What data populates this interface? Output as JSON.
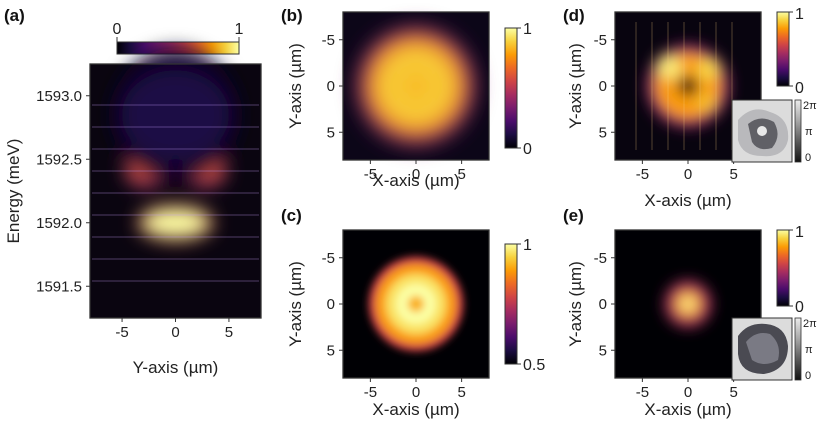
{
  "colors": {
    "inferno": [
      "#000004",
      "#1b0c41",
      "#4a0c6b",
      "#781c6d",
      "#a52c60",
      "#cf4446",
      "#ed6925",
      "#fb9b06",
      "#f7d13d",
      "#fcffa4"
    ],
    "phase": [
      "#111111",
      "#5a5a5a",
      "#a8a8a8",
      "#ececec"
    ],
    "frame": "#333333"
  },
  "chart_data": [
    {
      "panel": "(a)",
      "type": "heatmap",
      "title": "",
      "xlabel": "Y-axis (µm)",
      "ylabel": "Energy (meV)",
      "xlim": [
        -8,
        8
      ],
      "ylim": [
        1591.25,
        1593.25
      ],
      "xticks": [
        -5,
        0,
        5
      ],
      "xtick_labels": [
        "-5",
        "0",
        "5"
      ],
      "yticks": [
        1591.5,
        1592.0,
        1592.5,
        1593.0
      ],
      "ytick_labels": [
        "1591.5",
        "1592.0",
        "1592.5",
        "1593.0"
      ],
      "colorbar": {
        "min": 0,
        "max": 1,
        "labels": [
          "0",
          "1"
        ],
        "placement": "top"
      },
      "features": [
        {
          "name": "ground state",
          "x": 0,
          "energy": 1592.0,
          "intensity": 1.0
        },
        {
          "name": "excited state left lobe",
          "x": -2.8,
          "energy": 1592.42,
          "intensity": 0.62
        },
        {
          "name": "excited state right lobe",
          "x": 2.8,
          "energy": 1592.42,
          "intensity": 0.62
        },
        {
          "name": "higher states",
          "x": 0,
          "energy": 1592.85,
          "intensity": 0.12
        }
      ]
    },
    {
      "panel": "(b)",
      "type": "heatmap",
      "xlabel": "X-axis (µm)",
      "ylabel": "Y-axis (µm)",
      "xlim": [
        -8,
        8
      ],
      "ylim": [
        8,
        -8
      ],
      "xticks": [
        -5,
        0,
        5
      ],
      "xtick_labels": [
        "-5",
        "0",
        "5"
      ],
      "yticks": [
        -5,
        0,
        5
      ],
      "ytick_labels": [
        "-5",
        "0",
        "5"
      ],
      "colorbar": {
        "min": 0,
        "max": 1,
        "labels": [
          "0",
          "1"
        ],
        "placement": "right"
      },
      "pattern": {
        "shape": "ring",
        "radius": 3.0,
        "width": 3.2,
        "center_dip": 0.85
      }
    },
    {
      "panel": "(c)",
      "type": "heatmap",
      "xlabel": "X-axis (µm)",
      "ylabel": "Y-axis (µm)",
      "xlim": [
        -8,
        8
      ],
      "ylim": [
        8,
        -8
      ],
      "xticks": [
        -5,
        0,
        5
      ],
      "xtick_labels": [
        "-5",
        "0",
        "5"
      ],
      "yticks": [
        -5,
        0,
        5
      ],
      "ytick_labels": [
        "-5",
        "0",
        "5"
      ],
      "colorbar": {
        "min": 0.5,
        "max": 1,
        "labels": [
          "0.5",
          "1"
        ],
        "placement": "right"
      },
      "pattern": {
        "shape": "ring",
        "radius": 2.0,
        "width": 3.0,
        "center_dip": 0.85
      }
    },
    {
      "panel": "(d)",
      "type": "heatmap",
      "xlabel": "X-axis (µm)",
      "ylabel": "Y-axis (µm)",
      "xlim": [
        -8,
        8
      ],
      "ylim": [
        8,
        -8
      ],
      "xticks": [
        -5,
        0,
        5
      ],
      "xtick_labels": [
        "-5",
        "0",
        "5"
      ],
      "yticks": [
        -5,
        0,
        5
      ],
      "ytick_labels": [
        "-5",
        "0",
        "5"
      ],
      "colorbar": {
        "min": 0,
        "max": 1,
        "labels": [
          "0",
          "1"
        ],
        "placement": "right"
      },
      "phase_colorbar": {
        "labels": [
          "2π",
          "π",
          "0"
        ]
      },
      "pattern": {
        "shape": "ring",
        "radius": 2.2,
        "width": 2.6,
        "center_dip": 0.0
      }
    },
    {
      "panel": "(e)",
      "type": "heatmap",
      "xlabel": "X-axis (µm)",
      "ylabel": "Y-axis (µm)",
      "xlim": [
        -8,
        8
      ],
      "ylim": [
        8,
        -8
      ],
      "xticks": [
        -5,
        0,
        5
      ],
      "xtick_labels": [
        "-5",
        "0",
        "5"
      ],
      "yticks": [
        -5,
        0,
        5
      ],
      "ytick_labels": [
        "-5",
        "0",
        "5"
      ],
      "colorbar": {
        "min": 0,
        "max": 1,
        "labels": [
          "0",
          "1"
        ],
        "placement": "right"
      },
      "phase_colorbar": {
        "labels": [
          "2π",
          "π",
          "0"
        ]
      },
      "pattern": {
        "shape": "spot",
        "radius": 0.0,
        "width": 2.6,
        "center_dip": 0.0
      }
    }
  ]
}
